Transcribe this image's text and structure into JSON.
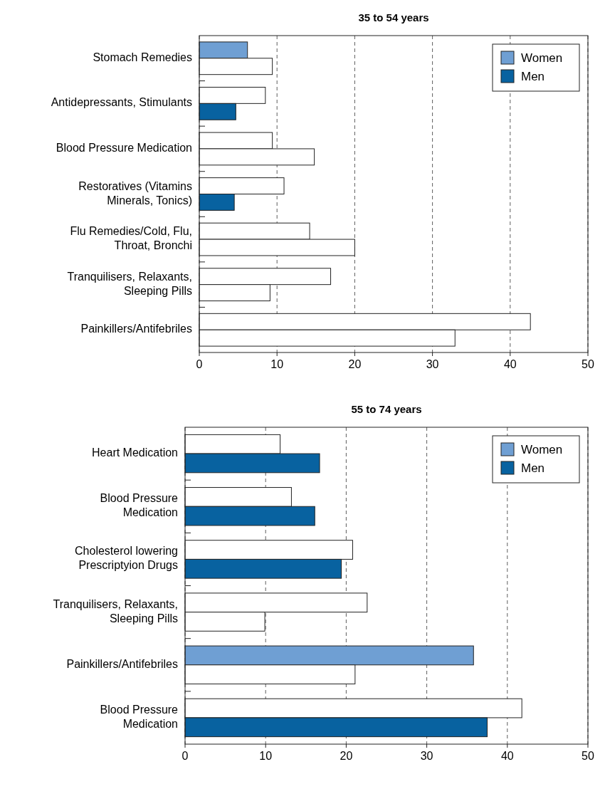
{
  "chart_data": [
    {
      "type": "bar",
      "orientation": "horizontal",
      "title": "35 to 54 years",
      "categories": [
        "Stomach Remedies",
        "Antidepressants, Stimulants",
        "Blood Pressure Medication",
        "Restoratives (Vitamins\nMinerals, Tonics)",
        "Flu Remedies/Cold, Flu,\nThroat, Bronchi",
        "Tranquilisers, Relaxants,\nSleeping Pills",
        "Painkillers/Antifebriles"
      ],
      "series": [
        {
          "name": "Women",
          "color": "#6f9fd3",
          "colors": [
            "#6f9fd3",
            "#ffffff",
            "#ffffff",
            "#ffffff",
            "#ffffff",
            "#ffffff",
            "#ffffff"
          ],
          "values": [
            6.2,
            8.5,
            9.4,
            10.9,
            14.2,
            16.9,
            42.6
          ]
        },
        {
          "name": "Men",
          "color": "#0862a0",
          "colors": [
            "#ffffff",
            "#0862a0",
            "#ffffff",
            "#0862a0",
            "#ffffff",
            "#ffffff",
            "#ffffff"
          ],
          "values": [
            9.4,
            4.7,
            14.8,
            4.5,
            20,
            9.1,
            32.9
          ]
        }
      ],
      "xlim": [
        0,
        50
      ],
      "xticks": [
        0,
        10,
        20,
        30,
        40,
        50
      ],
      "grid": "x",
      "legend": "top right"
    },
    {
      "type": "bar",
      "orientation": "horizontal",
      "title": "55 to 74 years",
      "categories": [
        "Heart Medication",
        "Blood Pressure\nMedication",
        "Cholesterol lowering\nPrescriptyion Drugs",
        "Tranquilisers, Relaxants,\nSleeping Pills",
        "Painkillers/Antifebriles",
        "Blood Pressure\nMedication"
      ],
      "series": [
        {
          "name": "Women",
          "color": "#6f9fd3",
          "colors": [
            "#ffffff",
            "#ffffff",
            "#ffffff",
            "#ffffff",
            "#6f9fd3",
            "#ffffff"
          ],
          "values": [
            11.8,
            13.2,
            20.8,
            22.6,
            35.8,
            41.8
          ]
        },
        {
          "name": "Men",
          "color": "#0862a0",
          "colors": [
            "#0862a0",
            "#0862a0",
            "#0862a0",
            "#ffffff",
            "#ffffff",
            "#0862a0"
          ],
          "values": [
            16.7,
            16.1,
            19.4,
            9.9,
            21.1,
            37.5
          ]
        }
      ],
      "xlim": [
        0,
        50
      ],
      "xticks": [
        0,
        10,
        20,
        30,
        40,
        50
      ],
      "grid": "x",
      "legend": "top right"
    }
  ]
}
